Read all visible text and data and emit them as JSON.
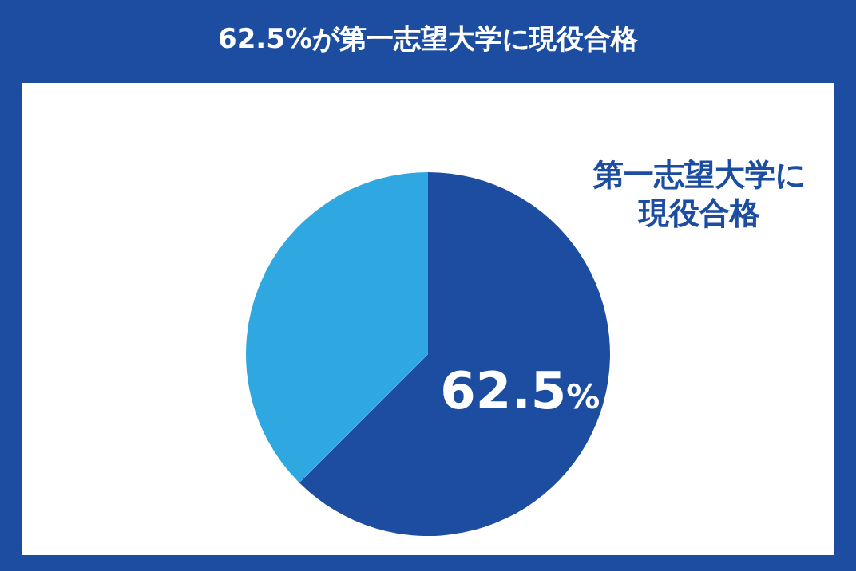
{
  "chart_data": {
    "type": "pie",
    "title": "62.5%が第一志望大学に現役合格",
    "categories": [
      "第一志望大学に現役合格",
      null
    ],
    "values": [
      62.5,
      37.5
    ],
    "colors": [
      "#1c4da1",
      "#2fa8e1"
    ],
    "value_labels": [
      "62.5%",
      null
    ]
  }
}
